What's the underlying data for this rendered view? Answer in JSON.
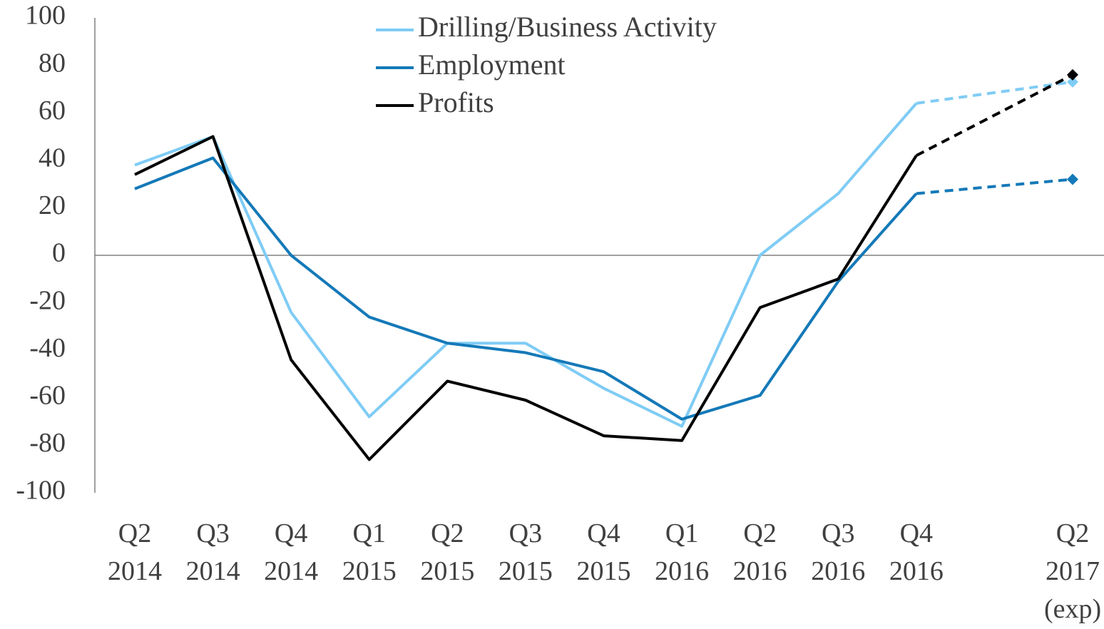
{
  "chart_data": {
    "type": "line",
    "categories": [
      "Q2 2014",
      "Q3 2014",
      "Q4 2014",
      "Q1 2015",
      "Q2 2015",
      "Q3 2015",
      "Q4 2015",
      "Q1 2016",
      "Q2 2016",
      "Q3 2016",
      "Q4 2016",
      null,
      "Q2 2017 (exp)"
    ],
    "series": [
      {
        "name": "Drilling/Business Activity",
        "color": "#7fccf5",
        "values": [
          38,
          50,
          -24,
          -68,
          -37,
          -37,
          -56,
          -72,
          0,
          26,
          64,
          null,
          73
        ]
      },
      {
        "name": "Employment",
        "color": "#1479b8",
        "values": [
          28,
          41,
          0,
          -26,
          -37,
          -41,
          -49,
          -69,
          -59,
          -11,
          26,
          null,
          32
        ]
      },
      {
        "name": "Profits",
        "color": "#000000",
        "values": [
          34,
          50,
          -44,
          -86,
          -53,
          -61,
          -76,
          -78,
          -22,
          -10,
          42,
          null,
          76
        ]
      }
    ],
    "ylim": [
      -100,
      100
    ],
    "yticks": [
      -100,
      -80,
      -60,
      -40,
      -20,
      0,
      20,
      40,
      60,
      80,
      100
    ],
    "grid": false,
    "gap_line": "dashed",
    "isolated_marker": "diamond",
    "legend": "top"
  }
}
